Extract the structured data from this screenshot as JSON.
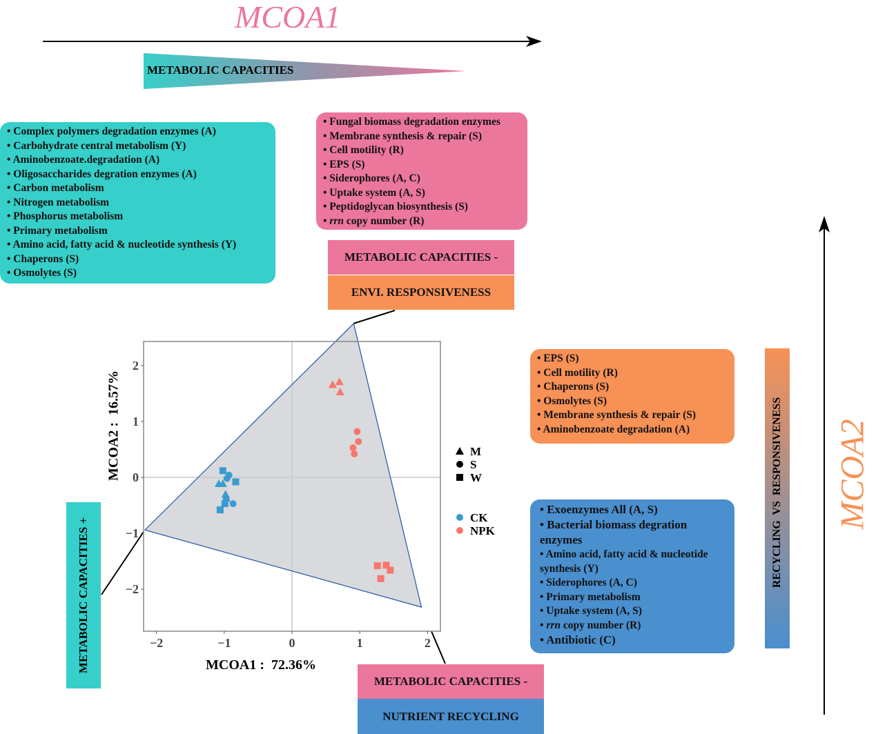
{
  "header": {
    "mcoa1_title": "MCOA1",
    "mcoa2_title": "MCOA2",
    "gradient_label": "METABOLIC CAPACITIES"
  },
  "colors": {
    "teal": "#36cfc9",
    "pink": "#ec779c",
    "orange": "#f79156",
    "blue": "#4a8fce",
    "ck": "#3a9bd0",
    "npk": "#f8766d"
  },
  "boxes": {
    "teal": [
      "• Complex polymers degradation enzymes (A)",
      "• Carbohydrate central metabolism (Y)",
      "• Aminobenzoate.degradation (A)",
      "• Oligosaccharides degration enzymes (A)",
      "• Carbon metabolism",
      "• Nitrogen metabolism",
      "• Phosphorus metabolism",
      "• Primary metabolism",
      "• Amino acid, fatty acid & nucleotide synthesis (Y)",
      "• Chaperons (S)",
      "• Osmolytes (S)"
    ],
    "pink": [
      "• Fungal biomass degradation enzymes",
      "• Membrane synthesis & repair (S)",
      "• Cell motility (R)",
      "• EPS (S)",
      "• Siderophores (A, C)",
      "• Uptake system (A, S)",
      "• Peptidoglycan biosynthesis (S)"
    ],
    "pink_rrn": {
      "italic": "rrn",
      "rest": " copy number (R)",
      "bullet": "• "
    },
    "orange": [
      "• EPS (S)",
      "• Cell motility (R)",
      "• Chaperons (S)",
      "• Osmolytes (S)",
      "• Membrane synthesis & repair (S)",
      "• Aminobenzoate degradation (A)"
    ],
    "blue": [
      "• Exoenzymes All (A, S)",
      "• Bacterial biomass degration enzymes",
      "• Amino acid, fatty acid & nucleotide synthesis (Y)",
      "• Siderophores (A, C)",
      "• Primary metabolism",
      "• Uptake system (A, S)"
    ],
    "blue_rrn": {
      "italic": "rrn",
      "rest": " copy number (R)",
      "bullet": "• "
    },
    "blue_last": "• Antibiotic (C)"
  },
  "labels": {
    "top_a": "METABOLIC CAPACITIES -",
    "top_b": "ENVI. RESPONSIVENESS",
    "bottom_a": "METABOLIC CAPACITIES -",
    "bottom_b": "NUTRIENT RECYCLING",
    "left": "METABOLIC CAPACITIES +",
    "right_bar": "RECYCLING  VS  RESPONSIVENESS"
  },
  "chart_data": {
    "type": "scatter",
    "xlabel": "MCOA1 :  72.36%",
    "ylabel": "MCOA2 :  16.57%",
    "xlim": [
      -2.19,
      2.19
    ],
    "ylim": [
      -2.75,
      2.43
    ],
    "xticks": [
      -2,
      -1,
      0,
      1,
      2
    ],
    "yticks": [
      -2,
      -1,
      0,
      1,
      2
    ],
    "xtick_labels": [
      "−2",
      "−1",
      "0",
      "1",
      "2"
    ],
    "ytick_labels": [
      "−2",
      "−1",
      "0",
      "1",
      "2"
    ],
    "hull": [
      [
        0.91,
        2.75
      ],
      [
        -2.17,
        -0.94
      ],
      [
        1.91,
        -2.32
      ]
    ],
    "legend_shape": [
      {
        "label": "M",
        "shape": "triangle"
      },
      {
        "label": "S",
        "shape": "circle"
      },
      {
        "label": "W",
        "shape": "square"
      }
    ],
    "legend_color": [
      {
        "label": "CK",
        "color": "#3a9bd0"
      },
      {
        "label": "NPK",
        "color": "#f8766d"
      }
    ],
    "points": [
      {
        "g": "NPK",
        "s": "triangle",
        "x": 0.6,
        "y": 1.66
      },
      {
        "g": "NPK",
        "s": "triangle",
        "x": 0.7,
        "y": 1.71
      },
      {
        "g": "NPK",
        "s": "triangle",
        "x": 0.71,
        "y": 1.53
      },
      {
        "g": "NPK",
        "s": "circle",
        "x": 0.96,
        "y": 0.82
      },
      {
        "g": "NPK",
        "s": "circle",
        "x": 0.98,
        "y": 0.64
      },
      {
        "g": "NPK",
        "s": "circle",
        "x": 0.9,
        "y": 0.53
      },
      {
        "g": "NPK",
        "s": "circle",
        "x": 0.92,
        "y": 0.42
      },
      {
        "g": "NPK",
        "s": "square",
        "x": 1.26,
        "y": -1.58
      },
      {
        "g": "NPK",
        "s": "square",
        "x": 1.39,
        "y": -1.57
      },
      {
        "g": "NPK",
        "s": "square",
        "x": 1.45,
        "y": -1.66
      },
      {
        "g": "NPK",
        "s": "square",
        "x": 1.31,
        "y": -1.81
      },
      {
        "g": "CK",
        "s": "square",
        "x": -1.02,
        "y": 0.12
      },
      {
        "g": "CK",
        "s": "square",
        "x": -0.83,
        "y": -0.08
      },
      {
        "g": "CK",
        "s": "square",
        "x": -0.99,
        "y": -0.47
      },
      {
        "g": "CK",
        "s": "square",
        "x": -1.06,
        "y": -0.58
      },
      {
        "g": "CK",
        "s": "circle",
        "x": -0.93,
        "y": 0.04
      },
      {
        "g": "CK",
        "s": "circle",
        "x": -0.96,
        "y": -0.02
      },
      {
        "g": "CK",
        "s": "circle",
        "x": -0.87,
        "y": -0.47
      },
      {
        "g": "CK",
        "s": "circle",
        "x": -0.97,
        "y": -0.39
      },
      {
        "g": "CK",
        "s": "triangle",
        "x": -1.08,
        "y": -0.11
      },
      {
        "g": "CK",
        "s": "triangle",
        "x": -1.02,
        "y": -0.11
      },
      {
        "g": "CK",
        "s": "triangle",
        "x": -0.98,
        "y": -0.3
      },
      {
        "g": "CK",
        "s": "triangle",
        "x": -0.97,
        "y": -0.37
      }
    ]
  }
}
